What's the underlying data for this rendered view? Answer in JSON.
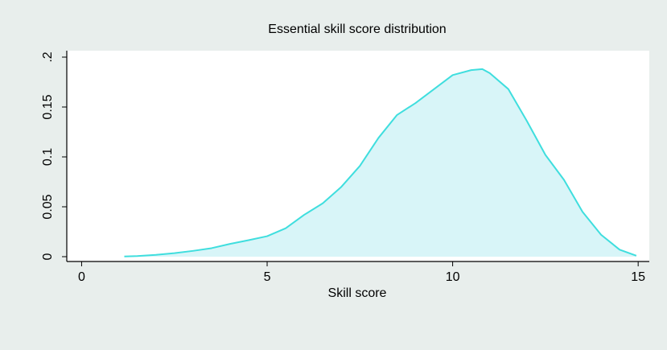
{
  "chart_data": {
    "type": "area",
    "title": "Essential skill score distribution",
    "xlabel": "Skill score",
    "ylabel": "",
    "xlim": [
      -0.4,
      15.3
    ],
    "ylim": [
      0,
      0.2
    ],
    "xticks": [
      0,
      5,
      10,
      15
    ],
    "xtick_labels": [
      "0",
      "5",
      "10",
      "15"
    ],
    "yticks": [
      0,
      0.05,
      0.1,
      0.15,
      0.2
    ],
    "ytick_labels": [
      "0",
      "0.05",
      "0.1",
      "0.15",
      ".2"
    ],
    "grid": false,
    "legend": "none",
    "line_color": "#3fdede",
    "fill_color": "#d8f5f8",
    "plot_background": "#ffffff",
    "figure_background": "#e8eeec",
    "series": [
      {
        "x": [
          1.15,
          1.5,
          2.0,
          2.5,
          3.0,
          3.5,
          4.0,
          4.5,
          5.0,
          5.5,
          6.0,
          6.5,
          7.0,
          7.5,
          8.0,
          8.5,
          9.0,
          9.5,
          10.0,
          10.5,
          10.8,
          11.0,
          11.5,
          12.0,
          12.5,
          13.0,
          13.5,
          14.0,
          14.5,
          14.95
        ],
        "y": [
          0.0002,
          0.0006,
          0.0018,
          0.0035,
          0.0058,
          0.0085,
          0.0128,
          0.0165,
          0.0205,
          0.0285,
          0.042,
          0.0535,
          0.07,
          0.091,
          0.119,
          0.142,
          0.154,
          0.168,
          0.182,
          0.187,
          0.188,
          0.184,
          0.168,
          0.136,
          0.102,
          0.077,
          0.045,
          0.022,
          0.007,
          0.001
        ]
      }
    ]
  }
}
